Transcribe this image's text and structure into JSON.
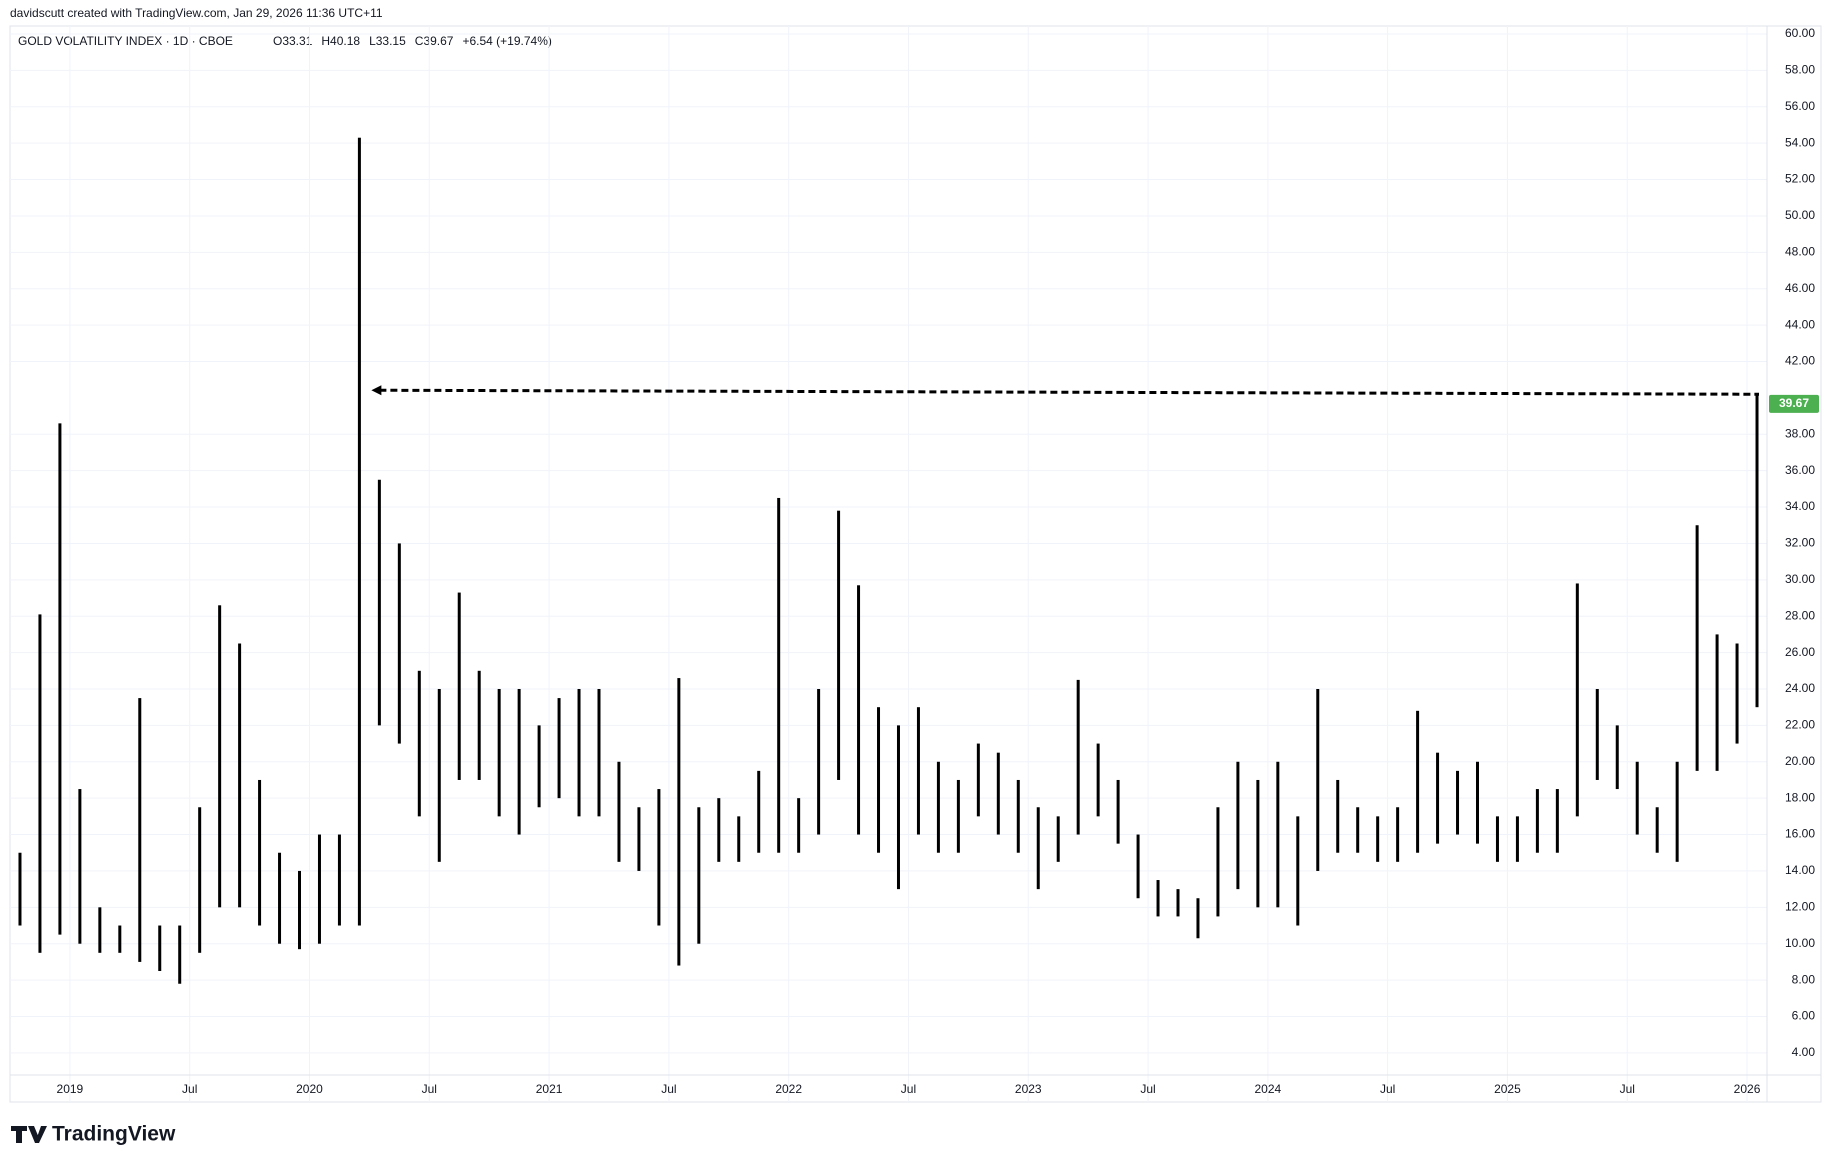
{
  "chart_data": {
    "type": "range_bar",
    "credit": "davidscutt created with TradingView.com, Jan 29, 2026 11:36 UTC+11",
    "title": "GOLD VOLATILITY INDEX · 1D · CBOE",
    "ohlc_text": [
      "O33.31",
      "H40.18",
      "L33.15",
      "C39.67",
      "+6.54 (+19.74%)"
    ],
    "brand": "TradingView",
    "color": "#000000",
    "grid": true,
    "last_value": 39.67,
    "last_color": "#4caf50",
    "level_line": {
      "from": "2020-04",
      "value": 40.2
    },
    "xlim": [
      "2018-10",
      "2026-02"
    ],
    "xticks": [
      {
        "value": "2019-01",
        "label": "2019"
      },
      {
        "value": "2019-07",
        "label": "Jul"
      },
      {
        "value": "2020-01",
        "label": "2020"
      },
      {
        "value": "2020-07",
        "label": "Jul"
      },
      {
        "value": "2021-01",
        "label": "2021"
      },
      {
        "value": "2021-07",
        "label": "Jul"
      },
      {
        "value": "2022-01",
        "label": "2022"
      },
      {
        "value": "2022-07",
        "label": "Jul"
      },
      {
        "value": "2023-01",
        "label": "2023"
      },
      {
        "value": "2023-07",
        "label": "Jul"
      },
      {
        "value": "2024-01",
        "label": "2024"
      },
      {
        "value": "2024-07",
        "label": "Jul"
      },
      {
        "value": "2025-01",
        "label": "2025"
      },
      {
        "value": "2025-07",
        "label": "Jul"
      },
      {
        "value": "2026-01",
        "label": "2026"
      }
    ],
    "ylim": [
      1.3,
      60.44
    ],
    "yticks": [
      {
        "value": 4,
        "label": "4.00"
      },
      {
        "value": 6,
        "label": "6.00"
      },
      {
        "value": 8,
        "label": "8.00"
      },
      {
        "value": 10,
        "label": "10.00"
      },
      {
        "value": 12,
        "label": "12.00"
      },
      {
        "value": 14,
        "label": "14.00"
      },
      {
        "value": 16,
        "label": "16.00"
      },
      {
        "value": 18,
        "label": "18.00"
      },
      {
        "value": 20,
        "label": "20.00"
      },
      {
        "value": 22,
        "label": "22.00"
      },
      {
        "value": 24,
        "label": "24.00"
      },
      {
        "value": 26,
        "label": "26.00"
      },
      {
        "value": 28,
        "label": "28.00"
      },
      {
        "value": 30,
        "label": "30.00"
      },
      {
        "value": 32,
        "label": "32.00"
      },
      {
        "value": 34,
        "label": "34.00"
      },
      {
        "value": 36,
        "label": "36.00"
      },
      {
        "value": 38,
        "label": "38.00"
      },
      {
        "value": 42,
        "label": "42.00"
      },
      {
        "value": 44,
        "label": "44.00"
      },
      {
        "value": 46,
        "label": "46.00"
      },
      {
        "value": 48,
        "label": "48.00"
      },
      {
        "value": 50,
        "label": "50.00"
      },
      {
        "value": 52,
        "label": "52.00"
      },
      {
        "value": 54,
        "label": "54.00"
      },
      {
        "value": 56,
        "label": "56.00"
      },
      {
        "value": 58,
        "label": "58.00"
      },
      {
        "value": 60,
        "label": "60.00"
      }
    ],
    "x": [
      "2018-10",
      "2018-11",
      "2018-12",
      "2019-01",
      "2019-02",
      "2019-03",
      "2019-04",
      "2019-05",
      "2019-06",
      "2019-07",
      "2019-08",
      "2019-09",
      "2019-10",
      "2019-11",
      "2019-12",
      "2020-01",
      "2020-02",
      "2020-03",
      "2020-04",
      "2020-05",
      "2020-06",
      "2020-07",
      "2020-08",
      "2020-09",
      "2020-10",
      "2020-11",
      "2020-12",
      "2021-01",
      "2021-02",
      "2021-03",
      "2021-04",
      "2021-05",
      "2021-06",
      "2021-07",
      "2021-08",
      "2021-09",
      "2021-10",
      "2021-11",
      "2021-12",
      "2022-01",
      "2022-02",
      "2022-03",
      "2022-04",
      "2022-05",
      "2022-06",
      "2022-07",
      "2022-08",
      "2022-09",
      "2022-10",
      "2022-11",
      "2022-12",
      "2023-01",
      "2023-02",
      "2023-03",
      "2023-04",
      "2023-05",
      "2023-06",
      "2023-07",
      "2023-08",
      "2023-09",
      "2023-10",
      "2023-11",
      "2023-12",
      "2024-01",
      "2024-02",
      "2024-03",
      "2024-04",
      "2024-05",
      "2024-06",
      "2024-07",
      "2024-08",
      "2024-09",
      "2024-10",
      "2024-11",
      "2024-12",
      "2025-01",
      "2025-02",
      "2025-03",
      "2025-04",
      "2025-05",
      "2025-06",
      "2025-07",
      "2025-08",
      "2025-09",
      "2025-10",
      "2025-11",
      "2025-12",
      "2026-01"
    ],
    "high": [
      15,
      28.1,
      38.6,
      18.5,
      12,
      11,
      23.5,
      11,
      11,
      17.5,
      28.6,
      26.5,
      19,
      15,
      14,
      16,
      16,
      54.3,
      35.5,
      32,
      25,
      24,
      29.3,
      25,
      24,
      24,
      22,
      23.5,
      24,
      24,
      20,
      17.5,
      18.5,
      24.6,
      17.5,
      18,
      17,
      19.5,
      34.5,
      18,
      24,
      33.8,
      29.7,
      23,
      22,
      23,
      20,
      19,
      21,
      20.5,
      19,
      17.5,
      17,
      24.5,
      21,
      19,
      16,
      13.5,
      13,
      12.5,
      17.5,
      20,
      19,
      20,
      17,
      24,
      19,
      17.5,
      17,
      17.5,
      22.8,
      20.5,
      19.5,
      20,
      17,
      17,
      18.5,
      18.5,
      29.8,
      24,
      22,
      20,
      17.5,
      20,
      33,
      27,
      26.5,
      40.18
    ],
    "low": [
      11,
      9.5,
      10.5,
      10,
      9.5,
      9.5,
      9,
      8.5,
      7.8,
      9.5,
      12,
      12,
      11,
      10,
      9.7,
      10,
      11,
      11,
      22,
      21,
      17,
      14.5,
      19,
      19,
      17,
      16,
      17.5,
      18,
      17,
      17,
      14.5,
      14,
      11,
      8.8,
      10,
      14.5,
      14.5,
      15,
      15,
      15,
      16,
      19,
      16,
      15,
      13,
      16,
      15,
      15,
      17,
      16,
      15,
      13,
      14.5,
      16,
      17,
      15.5,
      12.5,
      11.5,
      11.5,
      10.3,
      11.5,
      13,
      12,
      12,
      11,
      14,
      15,
      15,
      14.5,
      14.5,
      15,
      15.5,
      16,
      15.5,
      14.5,
      14.5,
      15,
      15,
      17,
      19,
      18.5,
      16,
      15,
      14.5,
      19.5,
      19.5,
      21,
      23
    ]
  }
}
